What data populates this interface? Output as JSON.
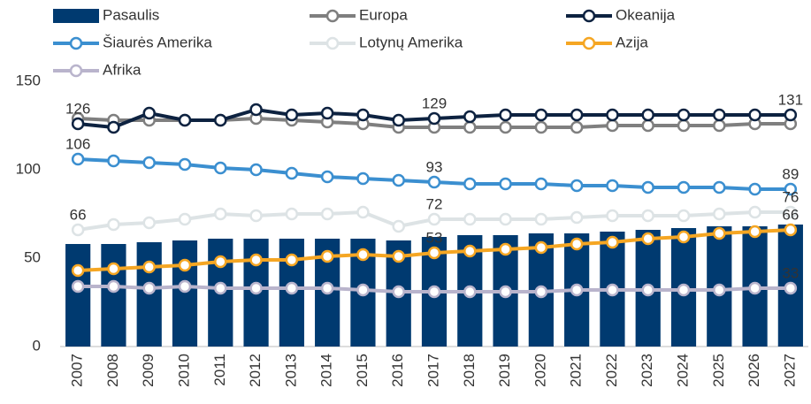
{
  "chart_data": {
    "type": "bar-line",
    "categories": [
      "2007",
      "2008",
      "2009",
      "2010",
      "2011",
      "2012",
      "2013",
      "2014",
      "2015",
      "2016",
      "2017",
      "2018",
      "2019",
      "2020",
      "2021",
      "2022",
      "2023",
      "2024",
      "2025",
      "2026",
      "2027"
    ],
    "ylim": [
      0,
      160
    ],
    "yticks": [
      0,
      50,
      100,
      150
    ],
    "series": [
      {
        "name": "Pasaulis",
        "kind": "bar",
        "color": "#003a70",
        "values": [
          58,
          58,
          59,
          60,
          61,
          61,
          61,
          61,
          61,
          60,
          62,
          63,
          63,
          64,
          64,
          65,
          66,
          67,
          68,
          68,
          69
        ]
      },
      {
        "name": "Europa",
        "kind": "line",
        "color": "#7f7f7f",
        "values": [
          129,
          128,
          128,
          128,
          128,
          129,
          128,
          127,
          126,
          124,
          124,
          124,
          124,
          124,
          124,
          125,
          125,
          125,
          125,
          126,
          126
        ]
      },
      {
        "name": "Okeanija",
        "kind": "line",
        "color": "#0d2240",
        "values": [
          126,
          124,
          132,
          128,
          128,
          134,
          131,
          132,
          131,
          128,
          129,
          130,
          131,
          131,
          131,
          131,
          131,
          131,
          131,
          131,
          131
        ],
        "labels_at": [
          0,
          10,
          20
        ]
      },
      {
        "name": "Šiaurės Amerika",
        "kind": "line",
        "color": "#3b8fd0",
        "values": [
          106,
          105,
          104,
          103,
          101,
          100,
          98,
          96,
          95,
          94,
          93,
          92,
          92,
          92,
          91,
          91,
          90,
          90,
          90,
          89,
          89
        ],
        "labels_at": [
          0,
          10,
          20
        ]
      },
      {
        "name": "Lotynų Amerika",
        "kind": "line",
        "color": "#dde3e5",
        "values": [
          66,
          69,
          70,
          72,
          75,
          74,
          75,
          75,
          76,
          68,
          72,
          72,
          72,
          72,
          73,
          74,
          74,
          74,
          75,
          76,
          76
        ],
        "labels_at": [
          0,
          10,
          20
        ]
      },
      {
        "name": "Azija",
        "kind": "line",
        "color": "#f5a623",
        "values": [
          43,
          44,
          45,
          46,
          48,
          49,
          49,
          51,
          52,
          51,
          53,
          54,
          55,
          56,
          58,
          59,
          61,
          62,
          64,
          65,
          66
        ],
        "labels_at": [
          10,
          20
        ]
      },
      {
        "name": "Afrika",
        "kind": "line",
        "color": "#b9b4cc",
        "values": [
          34,
          34,
          33,
          34,
          33,
          33,
          33,
          33,
          32,
          31,
          31,
          31,
          31,
          31,
          32,
          32,
          32,
          32,
          32,
          33,
          33
        ],
        "labels_at": [
          20
        ]
      }
    ]
  }
}
